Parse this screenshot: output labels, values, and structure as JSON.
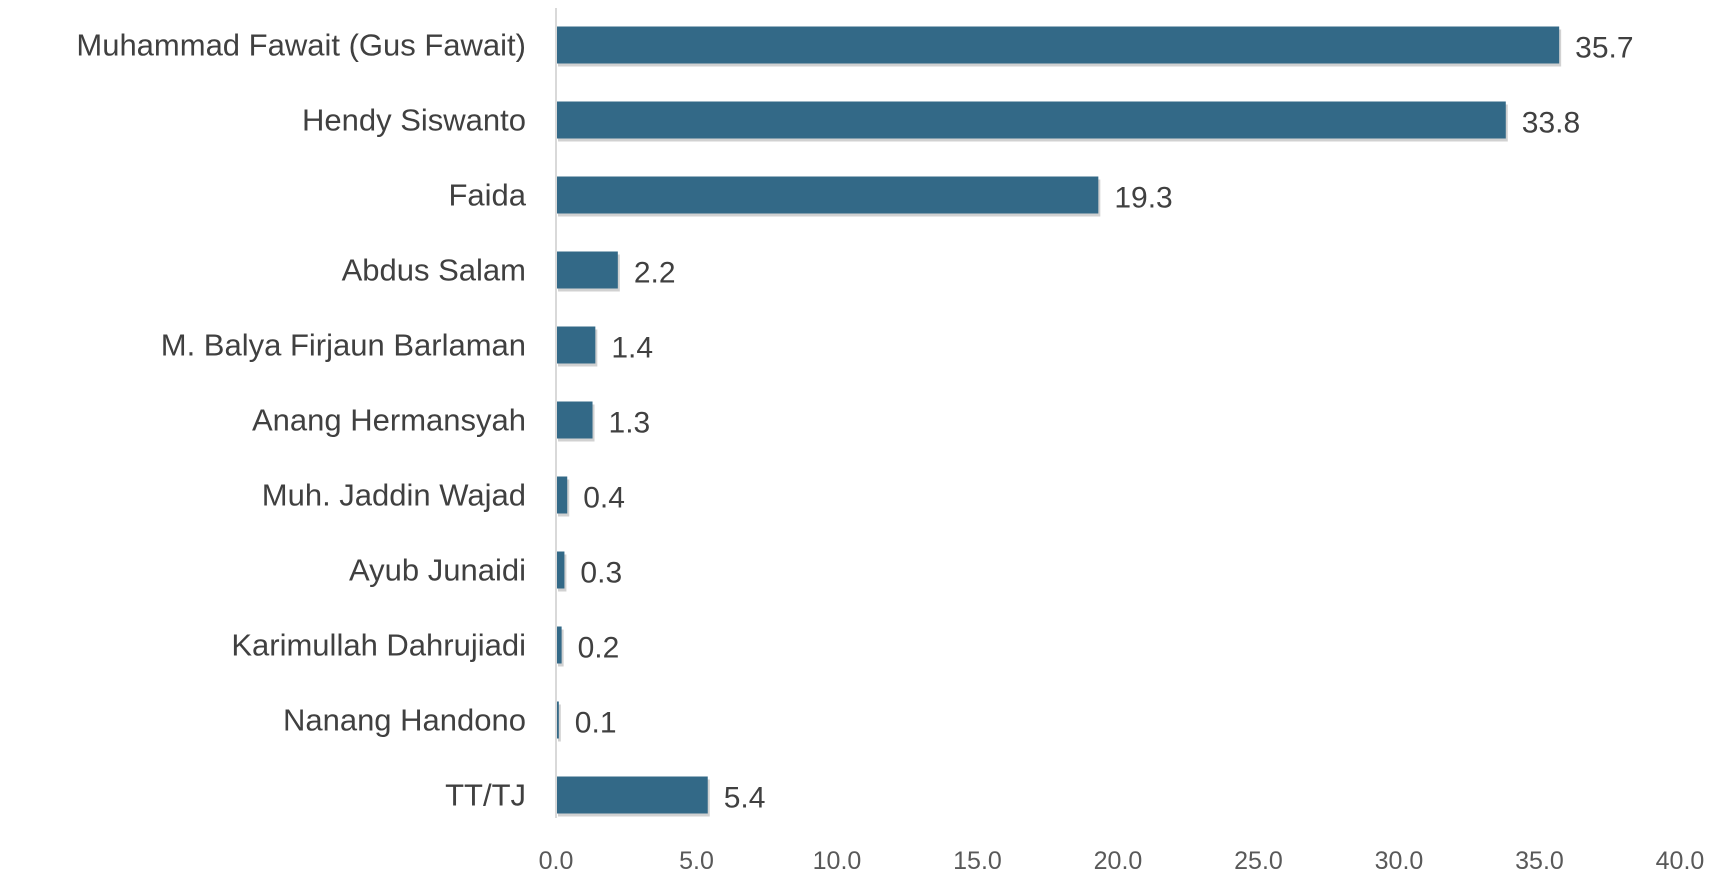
{
  "chart_data": {
    "type": "bar",
    "orientation": "horizontal",
    "categories": [
      "Muhammad Fawait (Gus Fawait)",
      "Hendy Siswanto",
      "Faida",
      "Abdus Salam",
      "M. Balya Firjaun Barlaman",
      "Anang Hermansyah",
      "Muh. Jaddin Wajad",
      "Ayub Junaidi",
      "Karimullah Dahrujiadi",
      "Nanang Handono",
      "TT/TJ"
    ],
    "values": [
      35.7,
      33.8,
      19.3,
      2.2,
      1.4,
      1.3,
      0.4,
      0.3,
      0.2,
      0.1,
      5.4
    ],
    "value_labels": [
      "35.7",
      "33.8",
      "19.3",
      "2.2",
      "1.4",
      "1.3",
      "0.4",
      "0.3",
      "0.2",
      "0.1",
      "5.4"
    ],
    "xlim": [
      0,
      40
    ],
    "x_ticks": [
      "0.0",
      "5.0",
      "10.0",
      "15.0",
      "20.0",
      "25.0",
      "30.0",
      "35.0",
      "40.0"
    ],
    "title": "",
    "xlabel": "",
    "ylabel": "",
    "grid": false,
    "bar_color": "#336987",
    "axis_color": "#d9d9d9"
  }
}
